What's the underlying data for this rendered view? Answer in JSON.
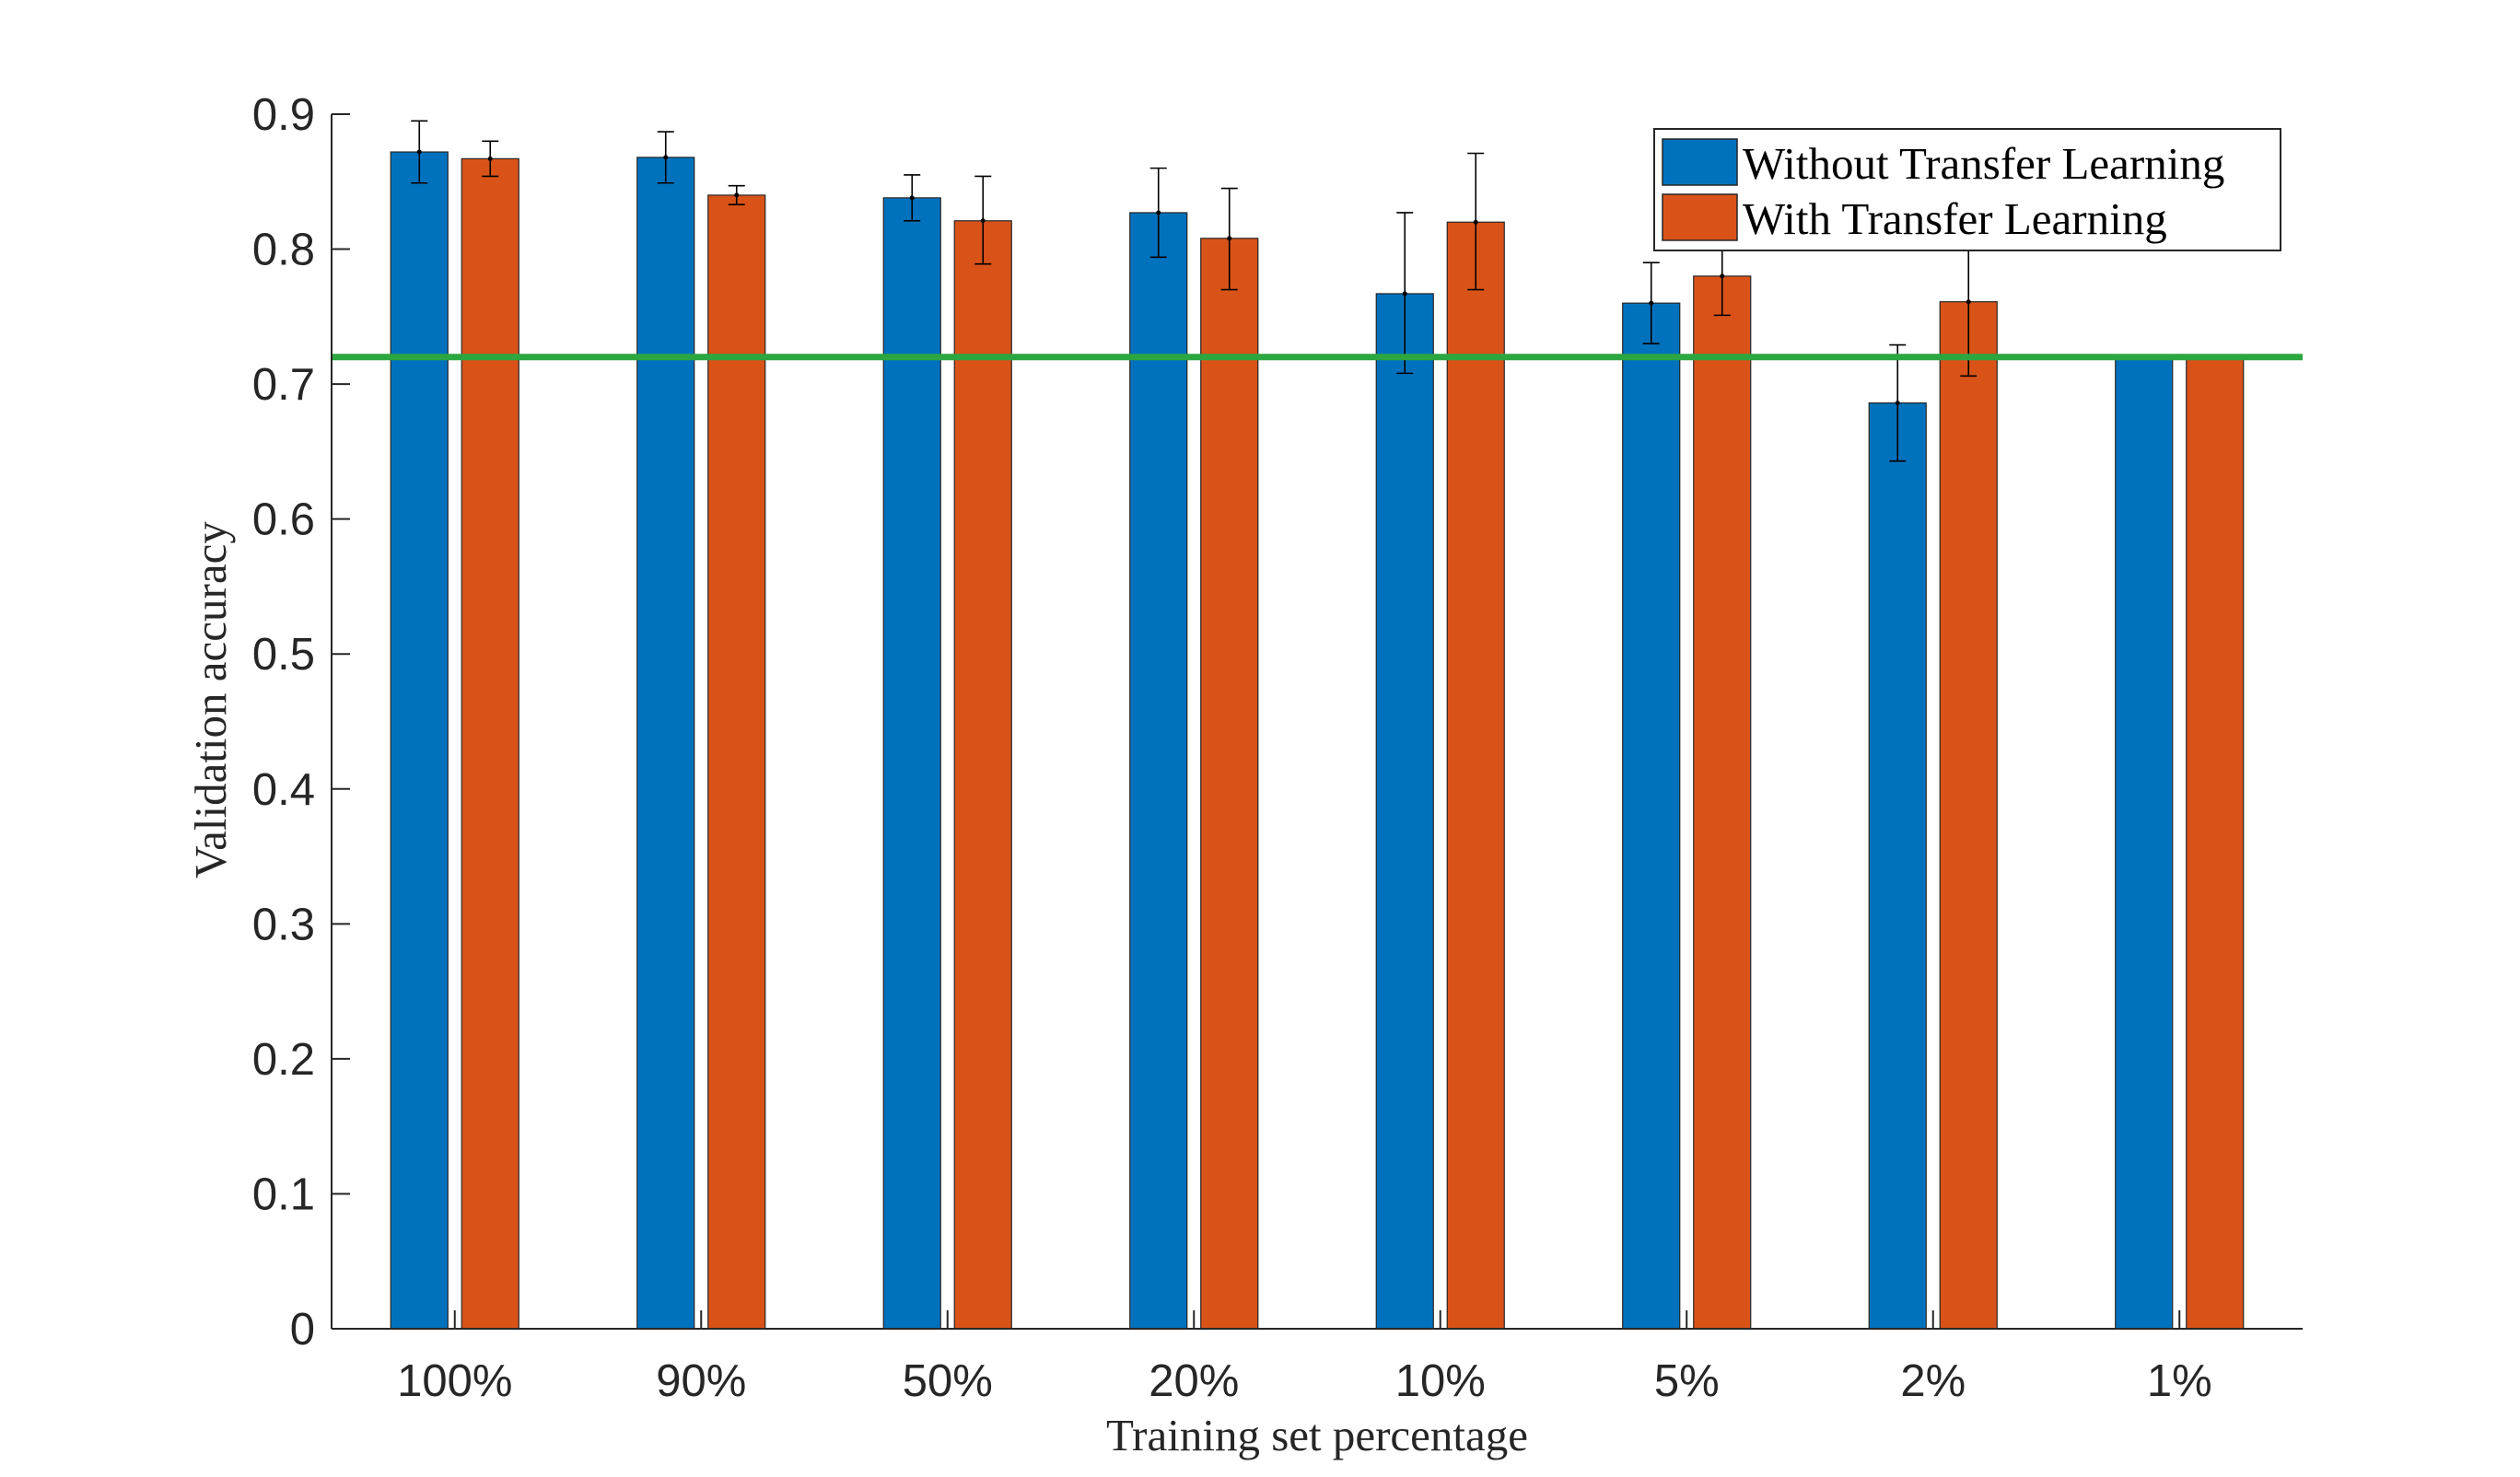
{
  "chart_data": {
    "type": "bar",
    "xlabel": "Training set percentage",
    "ylabel": "Validation accuracy",
    "ylim": [
      0,
      0.9
    ],
    "yticks": [
      "0",
      "0.1",
      "0.2",
      "0.3",
      "0.4",
      "0.5",
      "0.6",
      "0.7",
      "0.8",
      "0.9"
    ],
    "categories": [
      "100%",
      "90%",
      "50%",
      "20%",
      "10%",
      "5%",
      "2%",
      "1%"
    ],
    "series": [
      {
        "name": "Without Transfer Learning",
        "color": "#0072BD",
        "values": [
          0.872,
          0.868,
          0.838,
          0.827,
          0.767,
          0.76,
          0.686,
          0.72
        ],
        "error_low": [
          0.849,
          0.849,
          0.821,
          0.794,
          0.708,
          0.73,
          0.643,
          null
        ],
        "error_high": [
          0.895,
          0.887,
          0.855,
          0.86,
          0.827,
          0.79,
          0.729,
          null
        ]
      },
      {
        "name": "With Transfer Learning",
        "color": "#D95319",
        "values": [
          0.867,
          0.84,
          0.821,
          0.808,
          0.82,
          0.78,
          0.761,
          0.72
        ],
        "error_low": [
          0.854,
          0.833,
          0.789,
          0.77,
          0.77,
          0.751,
          0.706,
          null
        ],
        "error_high": [
          0.88,
          0.847,
          0.854,
          0.845,
          0.871,
          0.809,
          0.814,
          null
        ]
      }
    ],
    "reference_line": {
      "value": 0.72,
      "color": "#2CA640"
    },
    "legend_placement": "top-right",
    "grid": false,
    "box": "bottom-left axes only"
  }
}
